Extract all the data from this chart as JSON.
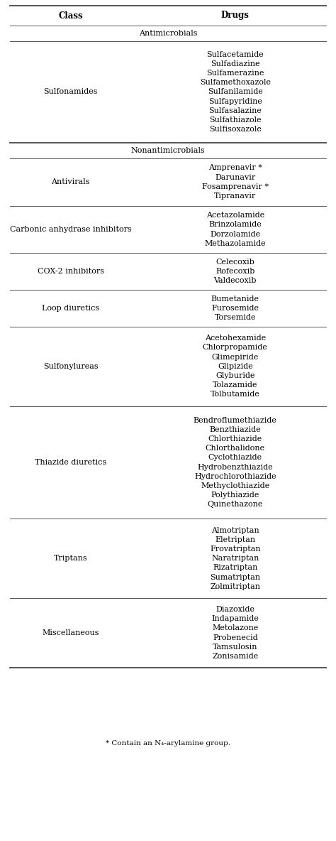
{
  "col_headers": [
    "Class",
    "Drugs"
  ],
  "section_headers": [
    "Antimicrobials",
    "Nonantimicrobials"
  ],
  "rows": [
    {
      "class": "Sulfonamides",
      "drugs": "Sulfacetamide\nSulfadiazine\nSulfamerazine\nSulfamethoxazole\nSulfanilamide\nSulfapyridine\nSulfasalazine\nSulfathiazole\nSulfisoxazole",
      "section": "Antimicrobials",
      "thick_bottom": true
    },
    {
      "class": "Antivirals",
      "drugs": "Amprenavir *\nDarunavir\nFosamprenavir *\nTipranavir",
      "section": "Nonantimicrobials",
      "thick_bottom": false
    },
    {
      "class": "Carbonic anhydrase inhibitors",
      "drugs": "Acetazolamide\nBrinzolamide\nDorzolamide\nMethazolamide",
      "section": "Nonantimicrobials",
      "thick_bottom": false
    },
    {
      "class": "COX-2 inhibitors",
      "drugs": "Celecoxib\nRofecoxib\nValdecoxib",
      "section": "Nonantimicrobials",
      "thick_bottom": false
    },
    {
      "class": "Loop diuretics",
      "drugs": "Bumetanide\nFurosemide\nTorsemide",
      "section": "Nonantimicrobials",
      "thick_bottom": false
    },
    {
      "class": "Sulfonylureas",
      "drugs": "Acetohexamide\nChlorpropamide\nGlimepiride\nGlipizide\nGlyburide\nTolazamide\nTolbutamide",
      "section": "Nonantimicrobials",
      "thick_bottom": false
    },
    {
      "class": "Thiazide diuretics",
      "drugs": "Bendroflumethiazide\nBenzthiazide\nChlorthiazide\nChlorthalidone\nCyclothiazide\nHydrobenzthiazide\nHydrochlorothiazide\nMethyclothiazide\nPolythiazide\nQuinethazone",
      "section": "Nonantimicrobials",
      "thick_bottom": false
    },
    {
      "class": "Triptans",
      "drugs": "Almotriptan\nEletriptan\nFrovatriptan\nNaratriptan\nRizatriptan\nSumatriptan\nZolmitriptan",
      "section": "Nonantimicrobials",
      "thick_bottom": false
    },
    {
      "class": "Miscellaneous",
      "drugs": "Diazoxide\nIndapamide\nMetolazone\nProbenecid\nTamsulosin\nZonisamide",
      "section": "Nonantimicrobials",
      "thick_bottom": true
    }
  ],
  "footnote": "* Contain an N₄-arylamine group.",
  "bg_color": "#ffffff",
  "text_color": "#000000",
  "header_fontsize": 8.5,
  "body_fontsize": 8.0,
  "line_color": "#555555",
  "col_split": 0.42,
  "col_mid1": 0.21,
  "col_mid2": 0.7,
  "line_lw_thick": 1.4,
  "line_lw_thin": 0.7
}
